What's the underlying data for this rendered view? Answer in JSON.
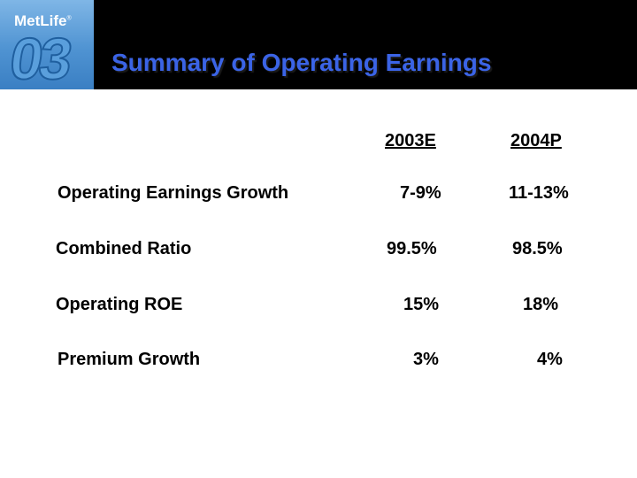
{
  "brand": {
    "name": "MetLife",
    "trademark": "®",
    "year_badge": "03"
  },
  "slide": {
    "title": "Summary of Operating Earnings"
  },
  "table": {
    "columns": [
      "2003E",
      "2004P"
    ],
    "rows": [
      {
        "label": "Operating Earnings Growth",
        "values": [
          "7-9%",
          "11-13%"
        ]
      },
      {
        "label": "Combined Ratio",
        "values": [
          "99.5%",
          "98.5%"
        ]
      },
      {
        "label": "Operating ROE",
        "values": [
          "15%",
          "18%"
        ]
      },
      {
        "label": "Premium Growth",
        "values": [
          "3%",
          "4%"
        ]
      }
    ]
  },
  "colors": {
    "header_bg": "#000000",
    "title": "#3b64e6",
    "logo_bg": "#4f93d2"
  }
}
